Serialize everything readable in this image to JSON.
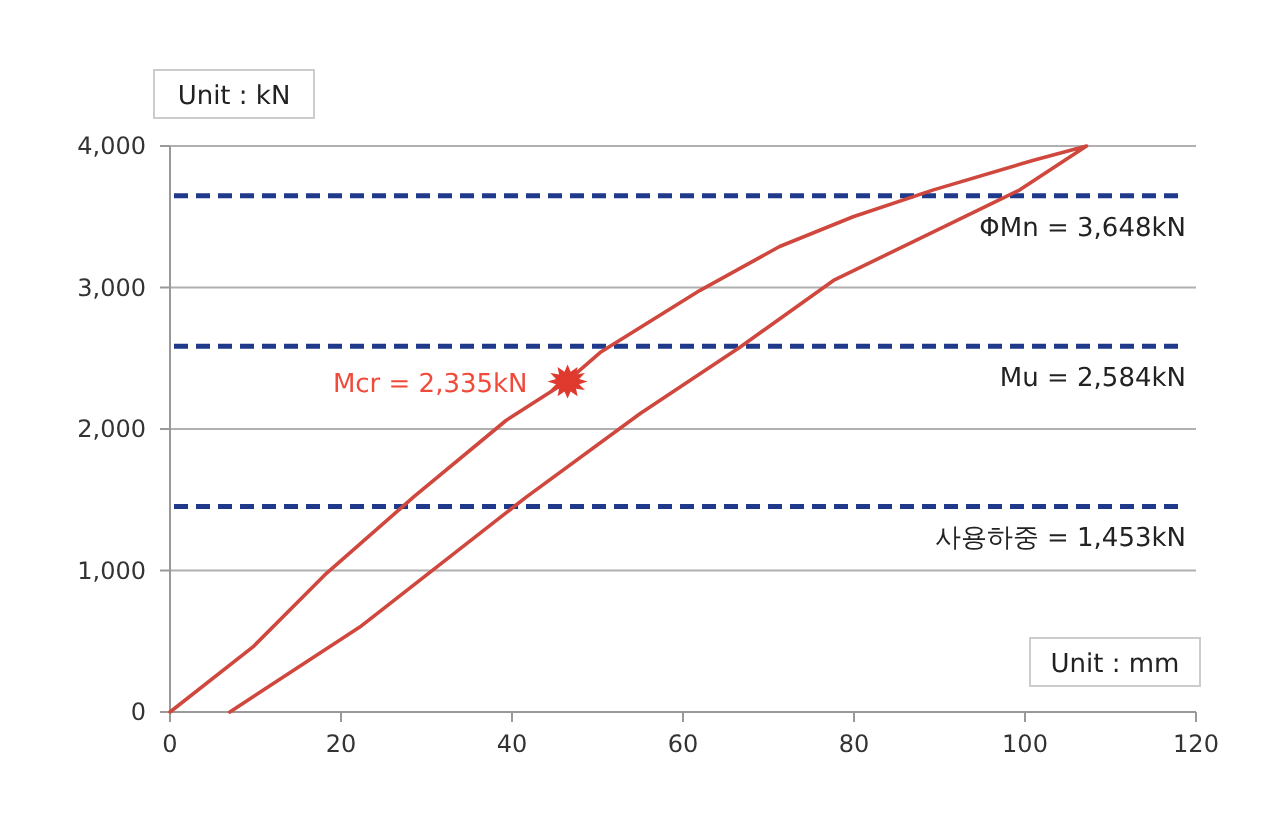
{
  "chart_data": {
    "type": "line",
    "xlabel": "Unit : mm",
    "ylabel": "Unit : kN",
    "xlim": [
      0,
      120
    ],
    "xticks": [
      0,
      20,
      40,
      60,
      80,
      100,
      120
    ],
    "ylim": [
      0,
      4000
    ],
    "yticks": [
      {
        "value": 0,
        "label": "0"
      },
      {
        "value": 1000,
        "label": "1,000"
      },
      {
        "value": 2000,
        "label": "2,000"
      },
      {
        "value": 3000,
        "label": "3,000"
      },
      {
        "value": 4000,
        "label": "4,000"
      }
    ],
    "grid": "y",
    "line_style": "solid",
    "series": [
      {
        "color": "#d0473e",
        "marker": "none",
        "x": [
          0,
          9.7,
          18.3,
          28.5,
          39.3,
          46.5,
          50.3,
          62,
          71.3,
          79.9,
          89.3,
          101,
          107.2,
          99.4,
          77.6,
          66.7,
          55,
          41.7,
          22.2,
          7
        ],
        "values": [
          0,
          460,
          980,
          1520,
          2060,
          2340,
          2540,
          2980,
          3290,
          3500,
          3690,
          3900,
          4000,
          3690,
          3050,
          2580,
          2110,
          1520,
          600,
          0
        ]
      },
      {
        "type": "scatter",
        "color": "#e03a2e",
        "marker": "star",
        "x": [
          46.5
        ],
        "values": [
          2335
        ]
      }
    ],
    "ref_lines": [
      {
        "axis": "y",
        "value": 3648,
        "label": "ΦMn = 3,648kN",
        "color": "#1f3a8a",
        "line_style": "dashed"
      },
      {
        "axis": "y",
        "value": 2584,
        "label": "Mu = 2,584kN",
        "color": "#1f3a8a",
        "line_style": "dashed"
      },
      {
        "axis": "y",
        "value": 1453,
        "label": "사용하중 = 1,453kN",
        "color": "#1f3a8a",
        "line_style": "dashed"
      }
    ],
    "annotations": [
      {
        "text": "Mcr = 2,335kN",
        "x": 46.5,
        "y": 2335
      }
    ]
  }
}
